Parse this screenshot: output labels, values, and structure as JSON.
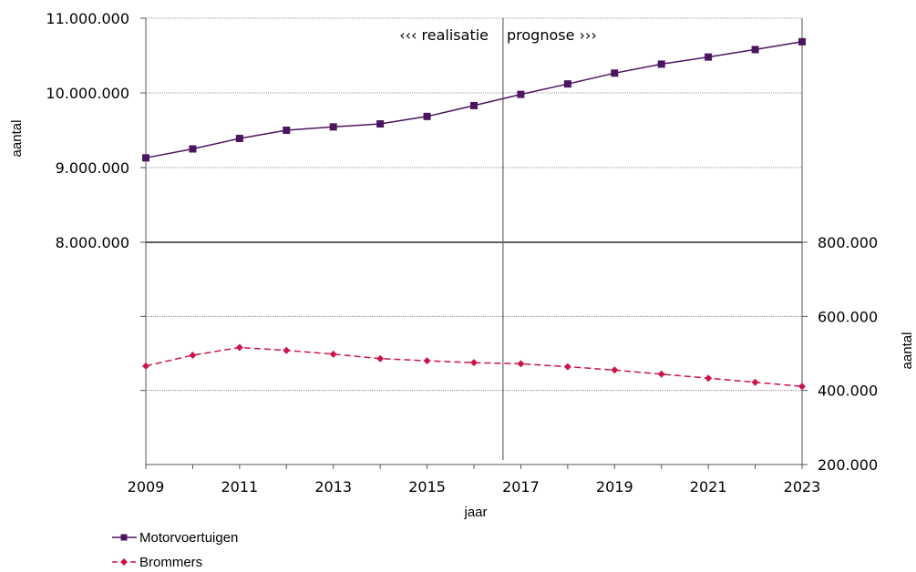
{
  "chart_data": {
    "type": "line",
    "x": [
      2009,
      2010,
      2011,
      2012,
      2013,
      2014,
      2015,
      2016,
      2017,
      2018,
      2019,
      2020,
      2021,
      2022,
      2023
    ],
    "x_tick_labels": [
      "2009",
      "2011",
      "2013",
      "2015",
      "2017",
      "2019",
      "2021",
      "2023"
    ],
    "xlabel": "jaar",
    "ylabel_left": "aantal",
    "ylabel_right": "aantal",
    "y_left_ticks": [
      "11.000.000",
      "10.000.000",
      "9.000.000",
      "8.000.000"
    ],
    "y_left_range": [
      8000000,
      11000000
    ],
    "y_right_ticks": [
      "800.000",
      "600.000",
      "400.000",
      "200.000"
    ],
    "y_right_range": [
      200000,
      800000
    ],
    "annotation_left": "‹‹‹ realisatie",
    "annotation_right": "prognose ›››",
    "divider_x": 2016.62,
    "grid": "horizontal",
    "legend_position": "bottom-left",
    "series": [
      {
        "name": "Motorvoertuigen",
        "axis": "left",
        "color": "#4b1560",
        "marker": "square",
        "line_style": "solid",
        "values": [
          9130000,
          9250000,
          9390000,
          9500000,
          9545000,
          9585000,
          9685000,
          9830000,
          9980000,
          10120000,
          10265000,
          10385000,
          10480000,
          10580000,
          10685000
        ]
      },
      {
        "name": "Brommers",
        "axis": "right",
        "color": "#cc1449",
        "marker": "diamond",
        "line_style": "dashed",
        "values": [
          466000,
          495000,
          516000,
          508000,
          498000,
          486000,
          480000,
          475000,
          472000,
          464000,
          455000,
          444000,
          433000,
          422000,
          411000
        ]
      }
    ]
  }
}
